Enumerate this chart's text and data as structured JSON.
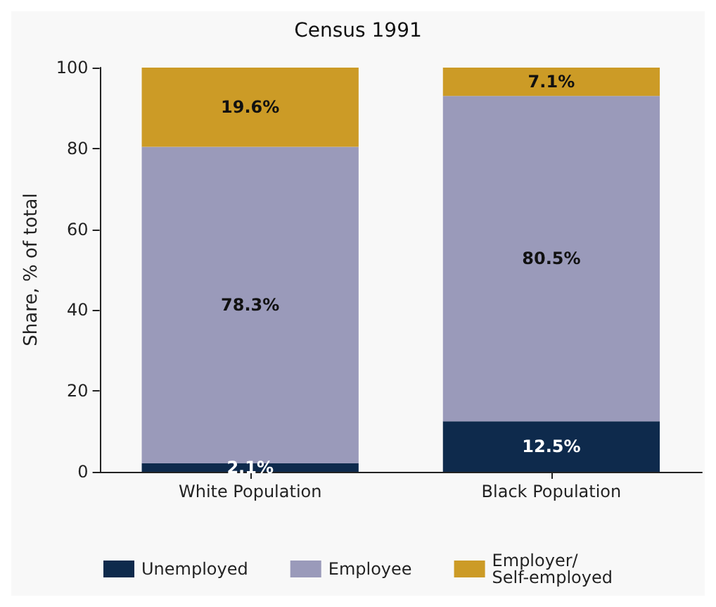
{
  "chart_data": {
    "type": "bar",
    "title": "Census 1991",
    "ylabel": "Share, % of total",
    "categories": [
      "White Population",
      "Black Population"
    ],
    "stacked": true,
    "ylim": [
      0,
      100
    ],
    "yticks": [
      0,
      20,
      40,
      60,
      80,
      100
    ],
    "grid": false,
    "legend": "bottom",
    "series": [
      {
        "name": "Unemployed",
        "color": "#0e2a4c",
        "values": [
          2.1,
          12.5
        ],
        "value_labels": [
          "2.1%",
          "12.5%"
        ]
      },
      {
        "name": "Employee",
        "color": "#9a9aba",
        "values": [
          78.3,
          80.5
        ],
        "value_labels": [
          "78.3%",
          "80.5%"
        ]
      },
      {
        "name": "Employer/\nSelf-employed",
        "color": "#cc9b26",
        "values": [
          19.6,
          7.1
        ],
        "value_labels": [
          "19.6%",
          "7.1%"
        ]
      }
    ]
  }
}
